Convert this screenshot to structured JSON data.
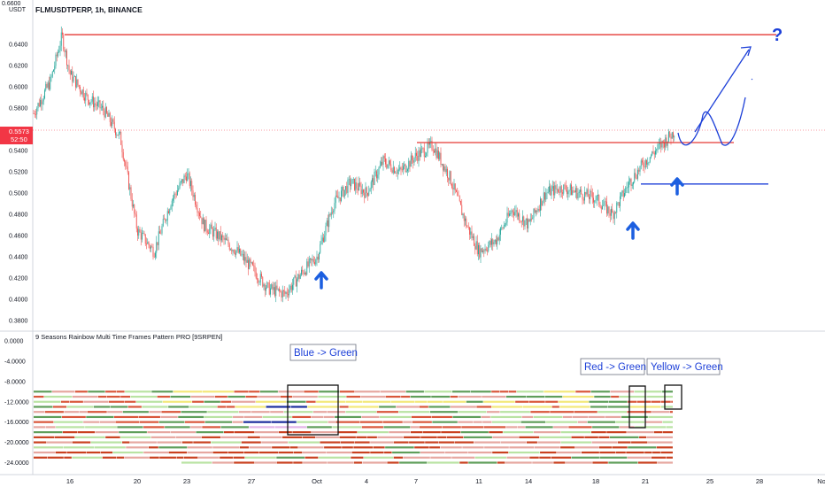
{
  "header": {
    "symbol_title": "FLMUSDTPERP, 1h, BINANCE",
    "unit": "USDT",
    "top_clipped_tick": "0.6600"
  },
  "price_badge": {
    "price": "0.5573",
    "countdown": "52:50",
    "color": "#f23645"
  },
  "indicator": {
    "title": "9 Seasons Rainbow Multi Time Frames Pattern PRO [9SRPEN]"
  },
  "annotations": {
    "blue_green": "Blue -> Green",
    "red_green": "Red -> Green",
    "yellow_green": "Yellow -> Green",
    "question_mark": "?"
  },
  "colors": {
    "bull": "#26a69a",
    "bear": "#ef5350",
    "level_red": "#e53935",
    "level_blue": "#1c3fd8",
    "arrow_blue": "#1c5fe0",
    "rainbow": [
      "#e6a7a0",
      "#d9573b",
      "#5f9e5a",
      "#1d2f9e",
      "#b9e3a3",
      "#f3e87a",
      "#e3b4e6",
      "#c9401f"
    ]
  },
  "chart_data": {
    "type": "candlestick",
    "title": "FLMUSDTPERP, 1h, BINANCE",
    "ylabel": "USDT",
    "ylim": [
      0.38,
      0.66
    ],
    "y_ticks": [
      "0.6400",
      "0.6200",
      "0.6000",
      "0.5800",
      "0.5600",
      "0.5400",
      "0.5200",
      "0.5000",
      "0.4800",
      "0.4600",
      "0.4400",
      "0.4200",
      "0.4000",
      "0.3800"
    ],
    "x_ticks": [
      "16",
      "20",
      "23",
      "27",
      "Oct",
      "4",
      "7",
      "11",
      "14",
      "18",
      "21",
      "25",
      "28",
      "No"
    ],
    "last_price": 0.5573,
    "close_path": [
      {
        "x": "13",
        "y": 0.575
      },
      {
        "x": "14",
        "y": 0.605
      },
      {
        "x": "15",
        "y": 0.648
      },
      {
        "x": "16",
        "y": 0.612
      },
      {
        "x": "17",
        "y": 0.59
      },
      {
        "x": "18",
        "y": 0.578
      },
      {
        "x": "19",
        "y": 0.552
      },
      {
        "x": "20",
        "y": 0.465
      },
      {
        "x": "21",
        "y": 0.445
      },
      {
        "x": "22",
        "y": 0.492
      },
      {
        "x": "23",
        "y": 0.518
      },
      {
        "x": "24",
        "y": 0.47
      },
      {
        "x": "25",
        "y": 0.458
      },
      {
        "x": "26",
        "y": 0.445
      },
      {
        "x": "27",
        "y": 0.43
      },
      {
        "x": "28",
        "y": 0.41
      },
      {
        "x": "29",
        "y": 0.405
      },
      {
        "x": "30",
        "y": 0.425
      },
      {
        "x": "Oct",
        "y": 0.44
      },
      {
        "x": "2",
        "y": 0.49
      },
      {
        "x": "3",
        "y": 0.51
      },
      {
        "x": "4",
        "y": 0.5
      },
      {
        "x": "5",
        "y": 0.53
      },
      {
        "x": "6",
        "y": 0.52
      },
      {
        "x": "7",
        "y": 0.535
      },
      {
        "x": "8",
        "y": 0.545
      },
      {
        "x": "9",
        "y": 0.515
      },
      {
        "x": "10",
        "y": 0.47
      },
      {
        "x": "11",
        "y": 0.445
      },
      {
        "x": "12",
        "y": 0.455
      },
      {
        "x": "13",
        "y": 0.485
      },
      {
        "x": "14",
        "y": 0.47
      },
      {
        "x": "15",
        "y": 0.5
      },
      {
        "x": "16",
        "y": 0.505
      },
      {
        "x": "17",
        "y": 0.5
      },
      {
        "x": "18",
        "y": 0.495
      },
      {
        "x": "19",
        "y": 0.48
      },
      {
        "x": "20",
        "y": 0.51
      },
      {
        "x": "21",
        "y": 0.53
      },
      {
        "x": "22",
        "y": 0.558
      }
    ],
    "levels": [
      {
        "name": "top resistance",
        "y": 0.649,
        "color": "red"
      },
      {
        "name": "breakout line",
        "y": 0.5475,
        "color": "red"
      },
      {
        "name": "support line",
        "y": 0.5085,
        "color": "blue"
      }
    ],
    "indicator": {
      "title": "9 Seasons Rainbow Multi Time Frames Pattern PRO [9SRPEN]",
      "ylim": [
        -25,
        1
      ],
      "y_ticks": [
        "0.0000",
        "-4.0000",
        "-8.0000",
        "-12.0000",
        "-16.0000",
        "-20.0000",
        "-24.0000"
      ],
      "rows": [
        -10,
        -11,
        -12,
        -13,
        -14,
        -15,
        -16,
        -17,
        -18,
        -19,
        -20,
        -21,
        -22,
        -23,
        -24
      ]
    }
  }
}
